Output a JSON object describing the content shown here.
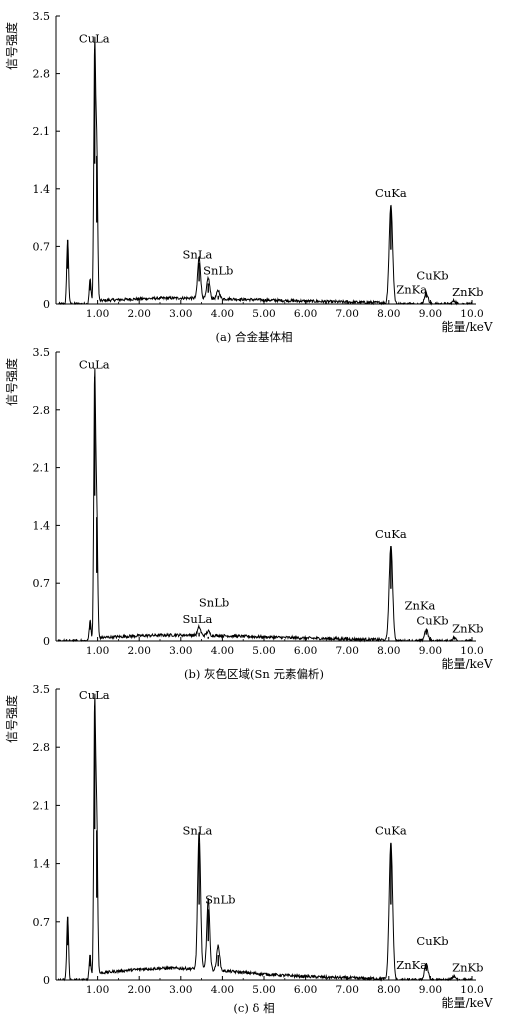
{
  "chart_data": [
    {
      "type": "line",
      "caption": "(a) 合金基体相",
      "ylabel": "信号强度",
      "xlabel": "能量/keV",
      "xlim": [
        0,
        10.0
      ],
      "ylim": [
        0,
        3.5
      ],
      "xticks": [
        "1.00",
        "2.00",
        "3.00",
        "4.00",
        "5.00",
        "6.00",
        "7.00",
        "8.00",
        "9.00",
        "10.0"
      ],
      "yticks": [
        "0",
        "0.7",
        "1.4",
        "2.1",
        "2.8",
        "3.5"
      ],
      "peaks": [
        {
          "x": 0.28,
          "y": 0.78
        },
        {
          "x": 0.82,
          "y": 0.3
        },
        {
          "x": 0.93,
          "y": 3.1
        },
        {
          "x": 0.98,
          "y": 1.8
        },
        {
          "x": 3.44,
          "y": 0.5
        },
        {
          "x": 3.66,
          "y": 0.25
        },
        {
          "x": 3.9,
          "y": 0.1
        },
        {
          "x": 8.05,
          "y": 1.2
        },
        {
          "x": 8.9,
          "y": 0.14
        },
        {
          "x": 9.57,
          "y": 0.04
        }
      ],
      "annotations": [
        {
          "text": "CuLa",
          "x": 0.92,
          "y": 3.18
        },
        {
          "text": "SnLa",
          "x": 3.4,
          "y": 0.55
        },
        {
          "text": "SnLb",
          "x": 3.9,
          "y": 0.36
        },
        {
          "text": "CuKa",
          "x": 8.05,
          "y": 1.3
        },
        {
          "text": "CuKb",
          "x": 9.05,
          "y": 0.3
        },
        {
          "text": "ZnKa",
          "x": 8.55,
          "y": 0.13
        },
        {
          "text": "ZnKb",
          "x": 9.9,
          "y": 0.1
        }
      ]
    },
    {
      "type": "line",
      "caption": "(b) 灰色区域(Sn 元素偏析)",
      "ylabel": "信号强度",
      "xlabel": "能量/keV",
      "xlim": [
        0,
        10.0
      ],
      "ylim": [
        0,
        3.5
      ],
      "xticks": [
        "1.00",
        "2.00",
        "3.00",
        "4.00",
        "5.00",
        "6.00",
        "7.00",
        "8.00",
        "9.00",
        "10.0"
      ],
      "yticks": [
        "0",
        "0.7",
        "1.4",
        "2.1",
        "2.8",
        "3.5"
      ],
      "peaks": [
        {
          "x": 0.82,
          "y": 0.25
        },
        {
          "x": 0.93,
          "y": 3.2
        },
        {
          "x": 0.98,
          "y": 1.5
        },
        {
          "x": 3.44,
          "y": 0.1
        },
        {
          "x": 3.66,
          "y": 0.05
        },
        {
          "x": 8.05,
          "y": 1.15
        },
        {
          "x": 8.9,
          "y": 0.14
        },
        {
          "x": 9.57,
          "y": 0.04
        }
      ],
      "annotations": [
        {
          "text": "CuLa",
          "x": 0.92,
          "y": 3.3
        },
        {
          "text": "SnLb",
          "x": 3.8,
          "y": 0.42
        },
        {
          "text": "SuLa",
          "x": 3.4,
          "y": 0.22
        },
        {
          "text": "CuKa",
          "x": 8.05,
          "y": 1.25
        },
        {
          "text": "ZnKa",
          "x": 8.75,
          "y": 0.38
        },
        {
          "text": "CuKb",
          "x": 9.05,
          "y": 0.2
        },
        {
          "text": "ZnKb",
          "x": 9.9,
          "y": 0.1
        }
      ]
    },
    {
      "type": "line",
      "caption": "(c) δ 相",
      "ylabel": "信号强度",
      "xlabel": "能量/keV",
      "xlim": [
        0,
        10.0
      ],
      "ylim": [
        0,
        3.5
      ],
      "xticks": [
        "1.00",
        "2.00",
        "3.00",
        "4.00",
        "5.00",
        "6.00",
        "7.00",
        "8.00",
        "9.00",
        "10.0"
      ],
      "yticks": [
        "0",
        "0.7",
        "1.4",
        "2.1",
        "2.8",
        "3.5"
      ],
      "peaks": [
        {
          "x": 0.28,
          "y": 0.76
        },
        {
          "x": 0.82,
          "y": 0.3
        },
        {
          "x": 0.93,
          "y": 3.3
        },
        {
          "x": 0.98,
          "y": 1.8
        },
        {
          "x": 3.44,
          "y": 1.65
        },
        {
          "x": 3.66,
          "y": 0.85
        },
        {
          "x": 3.9,
          "y": 0.3
        },
        {
          "x": 8.05,
          "y": 1.65
        },
        {
          "x": 8.9,
          "y": 0.2
        },
        {
          "x": 9.57,
          "y": 0.05
        }
      ],
      "annotations": [
        {
          "text": "CuLa",
          "x": 0.92,
          "y": 3.38
        },
        {
          "text": "SnLa",
          "x": 3.4,
          "y": 1.75
        },
        {
          "text": "SnLb",
          "x": 3.95,
          "y": 0.92
        },
        {
          "text": "CuKa",
          "x": 8.05,
          "y": 1.75
        },
        {
          "text": "CuKb",
          "x": 9.05,
          "y": 0.42
        },
        {
          "text": "ZnKa",
          "x": 8.55,
          "y": 0.13
        },
        {
          "text": "ZnKb",
          "x": 9.9,
          "y": 0.1
        }
      ]
    }
  ]
}
